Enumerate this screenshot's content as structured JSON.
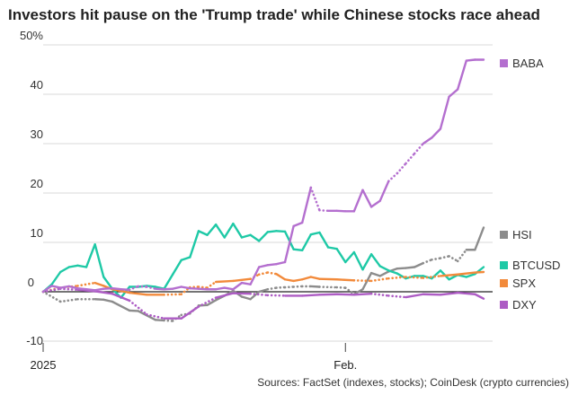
{
  "title": "Investors hit pause on the 'Trump trade' while Chinese stocks race ahead",
  "source": "Sources: FactSet (indexes, stocks); CoinDesk (crypto currencies)",
  "chart_data": {
    "type": "line",
    "title": "Investors hit pause on the 'Trump trade' while Chinese stocks race ahead",
    "ylim": [
      -10,
      50
    ],
    "yticks": [
      50,
      40,
      30,
      20,
      10,
      0,
      -10
    ],
    "ytick_labels": [
      "50%",
      "40",
      "30",
      "20",
      "10",
      "0",
      "-10"
    ],
    "xlim": [
      0,
      51
    ],
    "xticks": [
      {
        "x": 0,
        "label": "2025"
      },
      {
        "x": 35,
        "label": "Feb."
      }
    ],
    "xlabel": "",
    "ylabel": "",
    "series": [
      {
        "name": "HSI",
        "color": "#8c8c8c",
        "x": [
          0,
          2,
          4,
          6,
          7,
          8,
          10,
          11,
          13,
          14,
          15,
          16,
          17,
          18,
          19,
          20,
          21,
          22,
          23,
          24,
          25,
          26,
          27,
          28,
          29,
          30,
          31,
          32,
          34,
          35,
          36,
          37,
          38,
          39,
          40,
          41,
          42,
          43,
          44,
          45,
          46,
          47,
          48,
          49,
          50,
          51
        ],
        "y": [
          0,
          -2,
          -1.5,
          -1.5,
          -1.6,
          -2,
          -3.8,
          -3.9,
          -5.7,
          -5.8,
          -5.9,
          -4.7,
          -4.4,
          -2.8,
          -2.7,
          -1.7,
          -0.8,
          0.2,
          -1,
          -1.5,
          0,
          0.5,
          0.8,
          0.9,
          1,
          1.1,
          1.1,
          1,
          0.9,
          0.8,
          -0.5,
          0.5,
          3.8,
          3.2,
          4.1,
          4.7,
          4.8,
          5,
          5.8,
          6.5,
          6.8,
          7.2,
          6.2,
          8.5,
          8.5,
          13
        ]
      },
      {
        "name": "BTCUSD",
        "color": "#1ec9a6",
        "x": [
          0,
          1,
          2,
          3,
          4,
          5,
          6,
          7,
          8,
          9,
          10,
          11,
          12,
          13,
          14,
          15,
          16,
          17,
          18,
          19,
          20,
          21,
          22,
          23,
          24,
          25,
          26,
          27,
          28,
          29,
          30,
          31,
          32,
          33,
          34,
          35,
          36,
          37,
          38,
          39,
          40,
          41,
          42,
          43,
          44,
          45,
          46,
          47,
          48,
          49,
          50,
          51
        ],
        "y": [
          0,
          1.5,
          4,
          5,
          5.3,
          5,
          9.6,
          3,
          0.6,
          -1.2,
          1,
          1,
          1.2,
          1,
          0.6,
          3.5,
          6.4,
          7,
          12.3,
          11.5,
          13.6,
          11,
          13.8,
          11,
          11.5,
          10.3,
          12.1,
          12.3,
          12.2,
          8.6,
          8.4,
          11.6,
          12,
          9,
          8.7,
          6,
          8,
          4.5,
          7.6,
          5.2,
          4.3,
          3.7,
          2.7,
          3.2,
          3.2,
          2.7,
          4.3,
          2.5,
          3.4,
          3,
          3.6,
          5
        ]
      },
      {
        "name": "SPX",
        "color": "#f28a3b",
        "x": [
          0,
          2,
          4,
          6,
          7,
          8,
          10,
          12,
          14,
          16,
          17,
          18,
          19,
          20,
          22,
          24,
          25,
          26,
          27,
          28,
          29,
          30,
          31,
          32,
          34,
          36,
          38,
          40,
          42,
          44,
          46,
          48,
          50,
          51
        ],
        "y": [
          0,
          0.8,
          1.2,
          1.8,
          1.2,
          0.5,
          -0.2,
          -0.6,
          -0.6,
          -0.5,
          0.9,
          1,
          0.8,
          2,
          2.2,
          2.6,
          3.5,
          3.9,
          3.6,
          2.5,
          2.2,
          2.5,
          3,
          2.6,
          2.5,
          2.3,
          2.2,
          2.7,
          3,
          2.8,
          3.2,
          3.5,
          3.9,
          4
        ]
      },
      {
        "name": "DXY",
        "color": "#ad5cc4",
        "x": [
          0,
          2,
          4,
          6,
          8,
          10,
          12,
          14,
          16,
          18,
          20,
          22,
          24,
          26,
          28,
          30,
          32,
          34,
          36,
          38,
          40,
          42,
          44,
          46,
          48,
          50,
          51
        ],
        "y": [
          0,
          0.6,
          0.4,
          0.1,
          -0.4,
          -1.8,
          -4.6,
          -5.4,
          -5.4,
          -3,
          -1.2,
          -0.3,
          -0.4,
          -0.7,
          -0.8,
          -0.8,
          -0.6,
          -0.5,
          -0.6,
          -0.4,
          -0.8,
          -1.1,
          -0.5,
          -0.6,
          -0.2,
          -0.5,
          -1.4
        ]
      },
      {
        "name": "BABA",
        "color": "#b46fcf",
        "x": [
          0,
          1,
          2,
          3,
          4,
          5,
          6,
          7,
          8,
          9,
          10,
          11,
          12,
          13,
          14,
          15,
          16,
          17,
          18,
          19,
          20,
          21,
          22,
          23,
          24,
          25,
          26,
          27,
          28,
          29,
          30,
          31,
          32,
          33,
          34,
          35,
          36,
          37,
          38,
          39,
          40,
          41,
          42,
          43,
          44,
          45,
          46,
          47,
          48,
          49,
          50,
          51
        ],
        "y": [
          0,
          1.2,
          0.8,
          1.1,
          0.7,
          0.5,
          0.3,
          0.6,
          0.7,
          0.5,
          0.4,
          1.1,
          1,
          0.6,
          0.5,
          0.6,
          1,
          0.7,
          0.6,
          0.5,
          0.5,
          0.8,
          0.5,
          1.8,
          1.5,
          5,
          5.4,
          5.6,
          6,
          13.3,
          14,
          21.1,
          16.5,
          16.4,
          16.4,
          16.3,
          16.3,
          20.6,
          17.2,
          18.4,
          22.4,
          24,
          26,
          28,
          30,
          31.2,
          33,
          39.5,
          41,
          46.8,
          47,
          47
        ]
      }
    ],
    "legend": [
      "BABA",
      "HSI",
      "BTCUSD",
      "SPX",
      "DXY"
    ]
  }
}
